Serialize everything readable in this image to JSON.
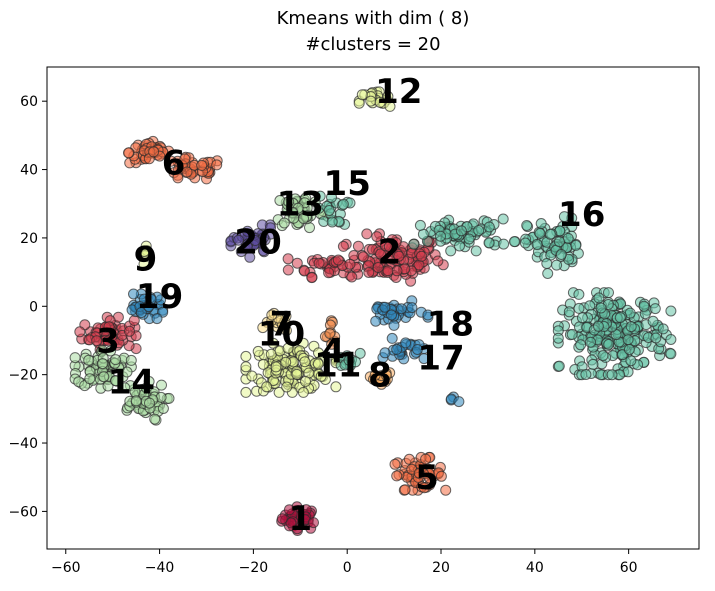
{
  "chart_data": {
    "type": "scatter",
    "title": "Kmeans with dim ( 8)",
    "subtitle": "#clusters = 20",
    "xlabel": "",
    "ylabel": "",
    "xlim": [
      -64,
      75
    ],
    "ylim": [
      -71,
      70
    ],
    "x_ticks": [
      -60,
      -40,
      -20,
      0,
      20,
      40,
      60
    ],
    "y_ticks": [
      -60,
      -40,
      -20,
      0,
      20,
      40,
      60
    ],
    "grid": false,
    "clusters": [
      {
        "label": "1",
        "x": -10,
        "y": -62,
        "color": "#b0103e",
        "blobs": [
          {
            "cx": -10,
            "cy": -62,
            "rx": 3.5,
            "ry": 3,
            "n": 40
          }
        ]
      },
      {
        "label": "2",
        "x": 9,
        "y": 16,
        "color": "#d53e4f",
        "blobs": [
          {
            "cx": 10,
            "cy": 14,
            "rx": 9,
            "ry": 6,
            "n": 110
          },
          {
            "cx": -3,
            "cy": 12,
            "rx": 8,
            "ry": 3,
            "n": 40
          }
        ]
      },
      {
        "label": "3",
        "x": -51,
        "y": -10,
        "color": "#d53e4f",
        "blobs": [
          {
            "cx": -51,
            "cy": -8,
            "rx": 5,
            "ry": 4,
            "n": 60
          }
        ]
      },
      {
        "label": "4",
        "x": -3,
        "y": -13,
        "color": "#f08a4b",
        "blobs": [
          {
            "cx": -3,
            "cy": -8,
            "rx": 1.5,
            "ry": 4,
            "n": 10
          }
        ]
      },
      {
        "label": "5",
        "x": 17,
        "y": -50,
        "color": "#f46d43",
        "blobs": [
          {
            "cx": 15,
            "cy": -49,
            "rx": 5,
            "ry": 4,
            "n": 55
          }
        ]
      },
      {
        "label": "6",
        "x": -37,
        "y": 42,
        "color": "#f46d43",
        "blobs": [
          {
            "cx": -42,
            "cy": 45,
            "rx": 4,
            "ry": 3,
            "n": 45
          },
          {
            "cx": -33,
            "cy": 40,
            "rx": 6,
            "ry": 3,
            "n": 45
          }
        ]
      },
      {
        "label": "7",
        "x": -14,
        "y": -5,
        "color": "#fee08b",
        "blobs": [
          {
            "cx": -15,
            "cy": -5,
            "rx": 2.5,
            "ry": 2.5,
            "n": 14
          }
        ]
      },
      {
        "label": "8",
        "x": 7,
        "y": -20,
        "color": "#fdae61",
        "blobs": [
          {
            "cx": 7,
            "cy": -21,
            "rx": 2.5,
            "ry": 2,
            "n": 14
          }
        ]
      },
      {
        "label": "9",
        "x": -43,
        "y": 14,
        "color": "#e6f598",
        "blobs": [
          {
            "cx": -43,
            "cy": 14,
            "rx": 0.8,
            "ry": 3,
            "n": 7
          }
        ]
      },
      {
        "label": "10",
        "x": -14,
        "y": -8,
        "color": "#e6f598",
        "blobs": [
          {
            "cx": -12,
            "cy": -18,
            "rx": 8,
            "ry": 6,
            "n": 130
          }
        ]
      },
      {
        "label": "11",
        "x": -2,
        "y": -17,
        "color": "#66c2a5",
        "blobs": [
          {
            "cx": 0,
            "cy": -16,
            "rx": 2.5,
            "ry": 2,
            "n": 12
          }
        ]
      },
      {
        "label": "12",
        "x": 11,
        "y": 63,
        "color": "#e6f598",
        "blobs": [
          {
            "cx": 6,
            "cy": 60,
            "rx": 3,
            "ry": 3,
            "n": 22
          }
        ]
      },
      {
        "label": "13",
        "x": -10,
        "y": 30,
        "color": "#abdda4",
        "blobs": [
          {
            "cx": -10,
            "cy": 28,
            "rx": 5,
            "ry": 5,
            "n": 55
          }
        ]
      },
      {
        "label": "14",
        "x": -46,
        "y": -22,
        "color": "#abdda4",
        "blobs": [
          {
            "cx": -52,
            "cy": -18,
            "rx": 5,
            "ry": 5,
            "n": 70
          },
          {
            "cx": -44,
            "cy": -28,
            "rx": 5,
            "ry": 5,
            "n": 55
          }
        ]
      },
      {
        "label": "15",
        "x": 0,
        "y": 36,
        "color": "#66c2a5",
        "blobs": [
          {
            "cx": -3,
            "cy": 28,
            "rx": 3,
            "ry": 4,
            "n": 20
          }
        ]
      },
      {
        "label": "16",
        "x": 50,
        "y": 27,
        "color": "#66c2a5",
        "blobs": [
          {
            "cx": 44,
            "cy": 18,
            "rx": 5,
            "ry": 7,
            "n": 70
          },
          {
            "cx": 25,
            "cy": 21,
            "rx": 9,
            "ry": 4,
            "n": 70
          },
          {
            "cx": 57,
            "cy": -8,
            "rx": 10,
            "ry": 10,
            "n": 230
          }
        ]
      },
      {
        "label": "17",
        "x": 20,
        "y": -15,
        "color": "#3288bd",
        "blobs": [
          {
            "cx": 12,
            "cy": -13,
            "rx": 4,
            "ry": 3,
            "n": 25
          },
          {
            "cx": 23,
            "cy": -27,
            "rx": 1,
            "ry": 1,
            "n": 4
          }
        ]
      },
      {
        "label": "18",
        "x": 22,
        "y": -5,
        "color": "#3288bd",
        "blobs": [
          {
            "cx": 10,
            "cy": -2,
            "rx": 6,
            "ry": 3,
            "n": 35
          }
        ]
      },
      {
        "label": "19",
        "x": -40,
        "y": 3,
        "color": "#3288bd",
        "blobs": [
          {
            "cx": -43,
            "cy": 0,
            "rx": 4,
            "ry": 3,
            "n": 35
          }
        ]
      },
      {
        "label": "20",
        "x": -19,
        "y": 19,
        "color": "#5e4fa2",
        "blobs": [
          {
            "cx": -20,
            "cy": 19,
            "rx": 4,
            "ry": 4,
            "n": 45
          }
        ]
      }
    ]
  }
}
